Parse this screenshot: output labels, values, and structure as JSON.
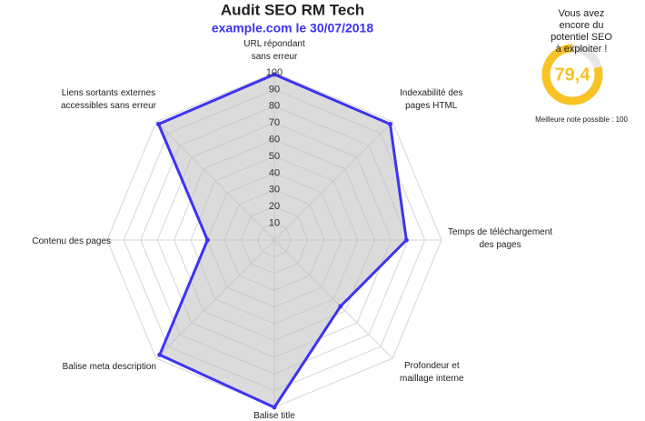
{
  "chart_data": {
    "type": "radar",
    "title": "Audit SEO RM Tech",
    "subtitle": "example.com le 30/07/2018",
    "categories": [
      "URL répondant\nsans erreur",
      "Indexabilité des\npages HTML",
      "Temps de téléchargement\ndes pages",
      "Profondeur et\nmaillage interne",
      "Balise title",
      "Balise meta description",
      "Contenu des pages",
      "Liens sortants externes\naccessibles sans erreur"
    ],
    "series": [
      {
        "color": "#3d33f2",
        "values": [
          99,
          98,
          79,
          56,
          100,
          97,
          40,
          98
        ]
      }
    ],
    "rlim": [
      0,
      100
    ],
    "rticks": [
      10,
      20,
      30,
      40,
      50,
      60,
      70,
      80,
      90,
      100
    ],
    "grid": true
  },
  "gauge": {
    "headline": "Vous avez encore du\npotentiel SEO à exploiter !",
    "score": {
      "value": 79.4,
      "label": "79,4"
    },
    "lim": [
      0,
      100
    ],
    "color": "#f7c325",
    "best_label": "Meilleure note possible : 100"
  }
}
